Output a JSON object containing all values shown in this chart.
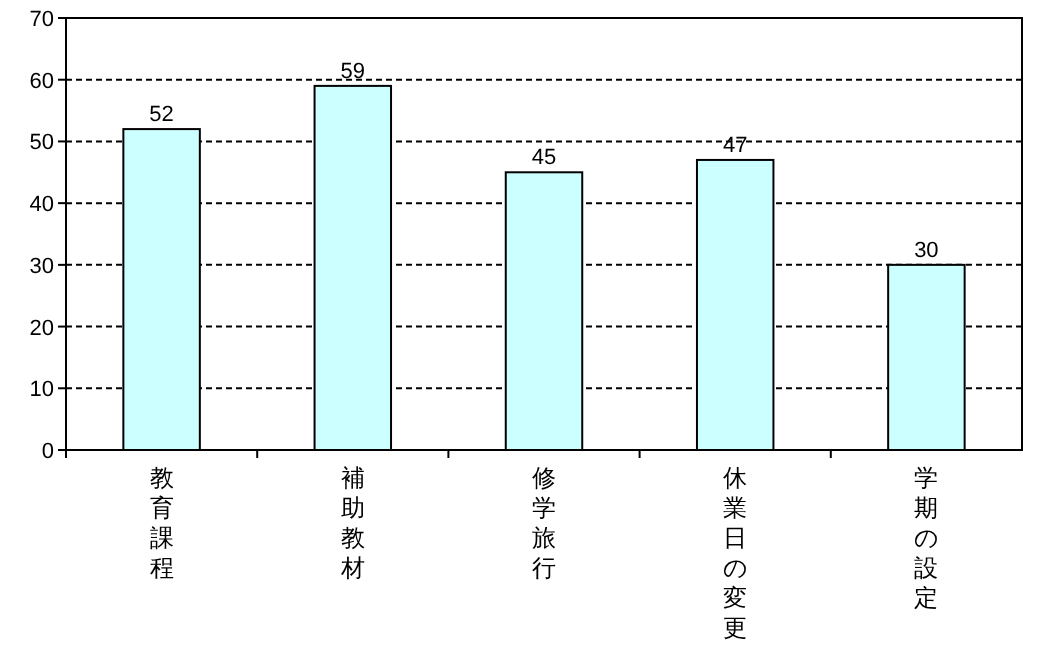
{
  "chart_data": {
    "type": "bar",
    "categories": [
      "教育課程",
      "補助教材",
      "修学旅行",
      "休業日の変更",
      "学期の設定"
    ],
    "values": [
      52,
      59,
      45,
      47,
      30
    ],
    "color": "#ccffff",
    "ylim": [
      0,
      70
    ],
    "yticks": [
      0,
      10,
      20,
      30,
      40,
      50,
      60,
      70
    ],
    "grid": "y",
    "data_labels": true
  }
}
